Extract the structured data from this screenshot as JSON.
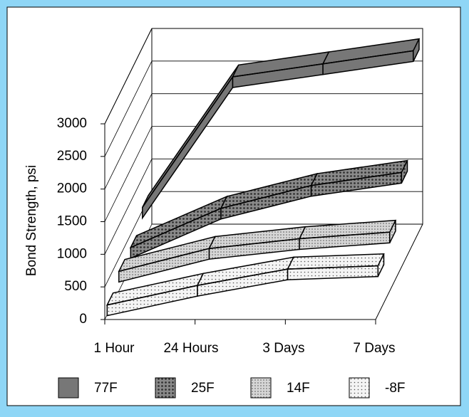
{
  "chart_data": {
    "type": "line3d",
    "y_axis_label": "Bond Strength, psi",
    "categories": [
      "1 Hour",
      "24 Hours",
      "3 Days",
      "7 Days"
    ],
    "series": [
      {
        "name": "77F",
        "color": "#777777",
        "values": [
          550,
          2550,
          2750,
          2950
        ]
      },
      {
        "name": "25F",
        "color": "#8a8a8a",
        "values": [
          300,
          900,
          1250,
          1450
        ]
      },
      {
        "name": "14F",
        "color": "#d6d6d6",
        "values": [
          300,
          650,
          800,
          900
        ]
      },
      {
        "name": "-8F",
        "color": "#f4f4f4",
        "values": [
          150,
          450,
          700,
          750
        ]
      }
    ],
    "ylim": [
      0,
      3000
    ],
    "yticks": [
      0,
      500,
      1000,
      1500,
      2000,
      2500,
      3000
    ],
    "grid": true,
    "legend": "bottom"
  }
}
